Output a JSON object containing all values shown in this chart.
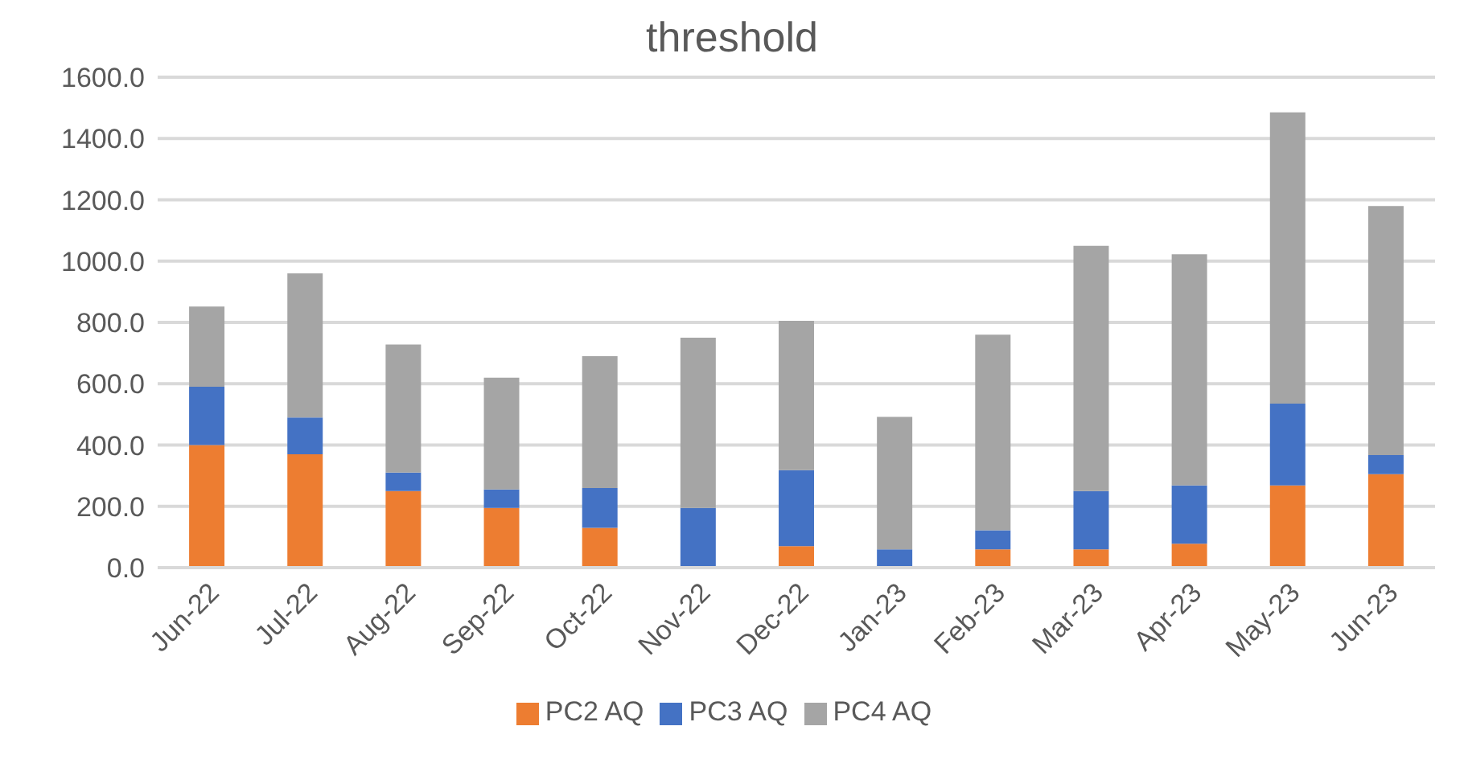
{
  "chart_data": {
    "type": "bar",
    "title": "threshold",
    "stacked": true,
    "categories": [
      "Jun-22",
      "Jul-22",
      "Aug-22",
      "Sep-22",
      "Oct-22",
      "Nov-22",
      "Dec-22",
      "Jan-23",
      "Feb-23",
      "Mar-23",
      "Apr-23",
      "May-23",
      "Jun-23"
    ],
    "series": [
      {
        "name": "PC2 AQ",
        "color": "#ed7d31",
        "values": [
          400,
          370,
          250,
          195,
          130,
          0,
          70,
          0,
          60,
          60,
          78,
          268,
          305
        ]
      },
      {
        "name": "PC3 AQ",
        "color": "#4472c4",
        "values": [
          190,
          120,
          60,
          60,
          130,
          195,
          248,
          60,
          62,
          190,
          190,
          267,
          62
        ]
      },
      {
        "name": "PC4 AQ",
        "color": "#a5a5a5",
        "values": [
          262,
          470,
          418,
          365,
          430,
          555,
          487,
          432,
          638,
          800,
          754,
          950,
          813
        ]
      }
    ],
    "ylim": [
      0,
      1600
    ],
    "yticks": [
      {
        "value": 0,
        "label": "0.0"
      },
      {
        "value": 200,
        "label": "200.0"
      },
      {
        "value": 400,
        "label": "400.0"
      },
      {
        "value": 600,
        "label": "600.0"
      },
      {
        "value": 800,
        "label": "800.0"
      },
      {
        "value": 1000,
        "label": "1000.0"
      },
      {
        "value": 1200,
        "label": "1200.0"
      },
      {
        "value": 1400,
        "label": "1400.0"
      },
      {
        "value": 1600,
        "label": "1600.0"
      }
    ],
    "grid": "y",
    "legend": "bottom"
  }
}
